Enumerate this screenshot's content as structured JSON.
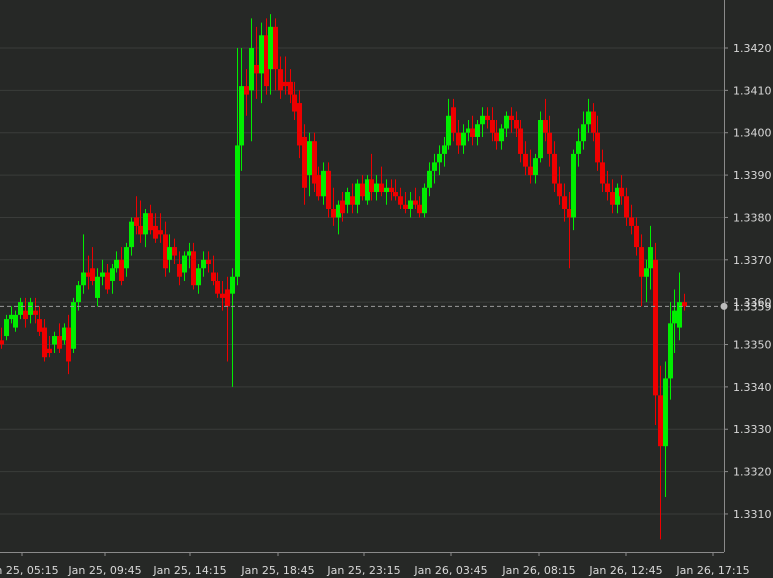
{
  "chart_data": {
    "type": "candlestick",
    "instrument_note": "",
    "colors": {
      "background": "#262826",
      "up": "#00ee00",
      "down": "#ee0000",
      "grid": "#3a3c3a",
      "axis": "#8a8a8a",
      "text": "#d8d8d8",
      "current_line": "#9a9a9a"
    },
    "ylim": [
      1.3302,
      1.3428
    ],
    "y_ticks": [
      "1.3310",
      "1.3320",
      "1.3330",
      "1.3340",
      "1.3350",
      "1.3360",
      "1.3370",
      "1.3380",
      "1.3390",
      "1.3400",
      "1.3410",
      "1.3420"
    ],
    "x_ticks": [
      "Jan 25, 05:15",
      "Jan 25, 09:45",
      "Jan 25, 14:15",
      "Jan 25, 18:45",
      "Jan 25, 23:15",
      "Jan 26, 03:45",
      "Jan 26, 08:15",
      "Jan 26, 12:45",
      "Jan 26, 17:15"
    ],
    "current_price": 1.3359,
    "current_price_label": "1.3359",
    "grid": true,
    "candles": [
      [
        1.3351,
        1.3354,
        1.3349,
        1.335
      ],
      [
        1.3352,
        1.3357,
        1.3351,
        1.3356
      ],
      [
        1.3356,
        1.3359,
        1.3355,
        1.3357
      ],
      [
        1.3354,
        1.3358,
        1.3353,
        1.3357
      ],
      [
        1.3357,
        1.3361,
        1.3356,
        1.336
      ],
      [
        1.3358,
        1.3361,
        1.3354,
        1.3356
      ],
      [
        1.3357,
        1.3361,
        1.3355,
        1.336
      ],
      [
        1.3358,
        1.3361,
        1.3355,
        1.3357
      ],
      [
        1.3356,
        1.3359,
        1.3352,
        1.3353
      ],
      [
        1.3354,
        1.3356,
        1.3346,
        1.3347
      ],
      [
        1.3349,
        1.3352,
        1.3347,
        1.3348
      ],
      [
        1.335,
        1.3353,
        1.3348,
        1.3352
      ],
      [
        1.3352,
        1.3355,
        1.3348,
        1.3349
      ],
      [
        1.3351,
        1.3355,
        1.335,
        1.3354
      ],
      [
        1.3354,
        1.3357,
        1.3343,
        1.3346
      ],
      [
        1.3349,
        1.3361,
        1.3348,
        1.336
      ],
      [
        1.336,
        1.3365,
        1.3358,
        1.3364
      ],
      [
        1.3364,
        1.3376,
        1.3362,
        1.3367
      ],
      [
        1.3367,
        1.3371,
        1.3363,
        1.3366
      ],
      [
        1.3368,
        1.3373,
        1.3364,
        1.3365
      ],
      [
        1.3361,
        1.3368,
        1.3359,
        1.3366
      ],
      [
        1.3366,
        1.337,
        1.3364,
        1.3367
      ],
      [
        1.3367,
        1.3369,
        1.3362,
        1.3363
      ],
      [
        1.3365,
        1.3369,
        1.3362,
        1.3368
      ],
      [
        1.3368,
        1.3372,
        1.3367,
        1.337
      ],
      [
        1.337,
        1.3373,
        1.3364,
        1.3365
      ],
      [
        1.3368,
        1.3374,
        1.3366,
        1.3373
      ],
      [
        1.3373,
        1.338,
        1.3371,
        1.3379
      ],
      [
        1.338,
        1.3385,
        1.3376,
        1.3378
      ],
      [
        1.3378,
        1.3384,
        1.3374,
        1.3376
      ],
      [
        1.3376,
        1.3382,
        1.3373,
        1.3381
      ],
      [
        1.3381,
        1.3383,
        1.3376,
        1.3377
      ],
      [
        1.3378,
        1.3381,
        1.3374,
        1.3375
      ],
      [
        1.3377,
        1.3381,
        1.3374,
        1.3376
      ],
      [
        1.3376,
        1.3379,
        1.3366,
        1.3368
      ],
      [
        1.337,
        1.3376,
        1.3367,
        1.3373
      ],
      [
        1.3373,
        1.3375,
        1.3369,
        1.3371
      ],
      [
        1.3369,
        1.3372,
        1.3364,
        1.3366
      ],
      [
        1.3367,
        1.3372,
        1.3365,
        1.3371
      ],
      [
        1.3371,
        1.3374,
        1.3368,
        1.3372
      ],
      [
        1.3372,
        1.3374,
        1.3363,
        1.3364
      ],
      [
        1.3364,
        1.3369,
        1.3362,
        1.3368
      ],
      [
        1.3368,
        1.3372,
        1.3366,
        1.337
      ],
      [
        1.337,
        1.3372,
        1.3367,
        1.3369
      ],
      [
        1.3367,
        1.3371,
        1.3364,
        1.3365
      ],
      [
        1.3365,
        1.3367,
        1.3361,
        1.3362
      ],
      [
        1.3362,
        1.3365,
        1.3358,
        1.3361
      ],
      [
        1.3363,
        1.3366,
        1.3346,
        1.3359
      ],
      [
        1.3362,
        1.3368,
        1.334,
        1.3366
      ],
      [
        1.3366,
        1.342,
        1.3364,
        1.3397
      ],
      [
        1.3397,
        1.342,
        1.3391,
        1.3411
      ],
      [
        1.3411,
        1.3415,
        1.3404,
        1.3409
      ],
      [
        1.341,
        1.3427,
        1.3398,
        1.342
      ],
      [
        1.3416,
        1.3425,
        1.3408,
        1.3414
      ],
      [
        1.3414,
        1.3426,
        1.3407,
        1.3423
      ],
      [
        1.3423,
        1.3427,
        1.3409,
        1.3411
      ],
      [
        1.3415,
        1.3428,
        1.3409,
        1.3425
      ],
      [
        1.3425,
        1.3427,
        1.341,
        1.3415
      ],
      [
        1.3415,
        1.3418,
        1.3408,
        1.341
      ],
      [
        1.3412,
        1.3418,
        1.3409,
        1.3411
      ],
      [
        1.3412,
        1.3415,
        1.3407,
        1.3409
      ],
      [
        1.3409,
        1.3412,
        1.3403,
        1.3405
      ],
      [
        1.3407,
        1.341,
        1.3394,
        1.3397
      ],
      [
        1.3399,
        1.3402,
        1.3383,
        1.3387
      ],
      [
        1.339,
        1.34,
        1.3385,
        1.3398
      ],
      [
        1.3398,
        1.34,
        1.3386,
        1.3388
      ],
      [
        1.339,
        1.3392,
        1.3384,
        1.3385
      ],
      [
        1.3385,
        1.3393,
        1.3383,
        1.3391
      ],
      [
        1.3391,
        1.3393,
        1.338,
        1.3382
      ],
      [
        1.3382,
        1.3387,
        1.3378,
        1.338
      ],
      [
        1.338,
        1.3384,
        1.3376,
        1.3383
      ],
      [
        1.3384,
        1.3386,
        1.3379,
        1.3381
      ],
      [
        1.3383,
        1.3387,
        1.3381,
        1.3386
      ],
      [
        1.3385,
        1.3388,
        1.3381,
        1.3383
      ],
      [
        1.3383,
        1.3389,
        1.3381,
        1.3388
      ],
      [
        1.3388,
        1.339,
        1.3384,
        1.3385
      ],
      [
        1.3384,
        1.339,
        1.3383,
        1.3389
      ],
      [
        1.3389,
        1.3395,
        1.3384,
        1.3386
      ],
      [
        1.3386,
        1.339,
        1.3384,
        1.3388
      ],
      [
        1.3388,
        1.3392,
        1.3385,
        1.3386
      ],
      [
        1.3386,
        1.3389,
        1.3383,
        1.3387
      ],
      [
        1.3387,
        1.3389,
        1.3384,
        1.3386
      ],
      [
        1.3386,
        1.3389,
        1.3384,
        1.3385
      ],
      [
        1.3385,
        1.3387,
        1.3382,
        1.3383
      ],
      [
        1.3383,
        1.3386,
        1.3381,
        1.3382
      ],
      [
        1.3382,
        1.3386,
        1.338,
        1.3384
      ],
      [
        1.3384,
        1.3387,
        1.3382,
        1.3383
      ],
      [
        1.3383,
        1.3385,
        1.338,
        1.3381
      ],
      [
        1.3381,
        1.3388,
        1.338,
        1.3387
      ],
      [
        1.3387,
        1.3393,
        1.3385,
        1.3391
      ],
      [
        1.3391,
        1.3395,
        1.3388,
        1.3393
      ],
      [
        1.3393,
        1.3397,
        1.339,
        1.3395
      ],
      [
        1.3395,
        1.3399,
        1.3392,
        1.3397
      ],
      [
        1.3397,
        1.3408,
        1.3396,
        1.3404
      ],
      [
        1.3406,
        1.3408,
        1.3398,
        1.34
      ],
      [
        1.34,
        1.3403,
        1.3395,
        1.3397
      ],
      [
        1.3397,
        1.3402,
        1.3395,
        1.34
      ],
      [
        1.34,
        1.3403,
        1.3398,
        1.3401
      ],
      [
        1.3401,
        1.3404,
        1.3397,
        1.3399
      ],
      [
        1.3399,
        1.3403,
        1.3397,
        1.3402
      ],
      [
        1.3402,
        1.3406,
        1.3399,
        1.3404
      ],
      [
        1.3404,
        1.3406,
        1.3401,
        1.3403
      ],
      [
        1.3403,
        1.3406,
        1.3398,
        1.34
      ],
      [
        1.34,
        1.3403,
        1.3396,
        1.3398
      ],
      [
        1.3398,
        1.3402,
        1.3396,
        1.3401
      ],
      [
        1.3401,
        1.3405,
        1.3399,
        1.3404
      ],
      [
        1.3404,
        1.3406,
        1.34,
        1.3403
      ],
      [
        1.3403,
        1.3405,
        1.3399,
        1.3401
      ],
      [
        1.3401,
        1.3403,
        1.3393,
        1.3395
      ],
      [
        1.3395,
        1.3398,
        1.339,
        1.3392
      ],
      [
        1.3392,
        1.3396,
        1.3388,
        1.339
      ],
      [
        1.339,
        1.3395,
        1.3388,
        1.3394
      ],
      [
        1.3394,
        1.3405,
        1.3393,
        1.3403
      ],
      [
        1.3403,
        1.3408,
        1.3398,
        1.34
      ],
      [
        1.34,
        1.3404,
        1.3392,
        1.3395
      ],
      [
        1.3395,
        1.3398,
        1.3386,
        1.3388
      ],
      [
        1.3388,
        1.3392,
        1.3383,
        1.3385
      ],
      [
        1.3385,
        1.3388,
        1.3379,
        1.3382
      ],
      [
        1.3382,
        1.3386,
        1.3368,
        1.338
      ],
      [
        1.338,
        1.3396,
        1.3377,
        1.3395
      ],
      [
        1.3395,
        1.3401,
        1.3392,
        1.3398
      ],
      [
        1.3398,
        1.3405,
        1.3396,
        1.3402
      ],
      [
        1.3402,
        1.3408,
        1.34,
        1.3405
      ],
      [
        1.3405,
        1.3407,
        1.3398,
        1.34
      ],
      [
        1.34,
        1.3404,
        1.3391,
        1.3393
      ],
      [
        1.3393,
        1.3396,
        1.3386,
        1.3388
      ],
      [
        1.3388,
        1.3391,
        1.3384,
        1.3386
      ],
      [
        1.3386,
        1.3389,
        1.3381,
        1.3383
      ],
      [
        1.3383,
        1.3388,
        1.3381,
        1.3387
      ],
      [
        1.3387,
        1.339,
        1.3383,
        1.3385
      ],
      [
        1.3385,
        1.3387,
        1.3378,
        1.338
      ],
      [
        1.338,
        1.3383,
        1.3376,
        1.3378
      ],
      [
        1.3378,
        1.338,
        1.3371,
        1.3373
      ],
      [
        1.3373,
        1.3376,
        1.3359,
        1.3366
      ],
      [
        1.3366,
        1.337,
        1.336,
        1.3368
      ],
      [
        1.3368,
        1.3378,
        1.3363,
        1.3373
      ],
      [
        1.337,
        1.3374,
        1.3331,
        1.3338
      ],
      [
        1.3338,
        1.3345,
        1.3304,
        1.3326
      ],
      [
        1.3326,
        1.3346,
        1.3314,
        1.3342
      ],
      [
        1.3342,
        1.336,
        1.3337,
        1.3355
      ],
      [
        1.3355,
        1.3363,
        1.3348,
        1.3358
      ],
      [
        1.3354,
        1.3367,
        1.3351,
        1.336
      ],
      [
        1.336,
        1.3362,
        1.3358,
        1.3359
      ]
    ]
  }
}
